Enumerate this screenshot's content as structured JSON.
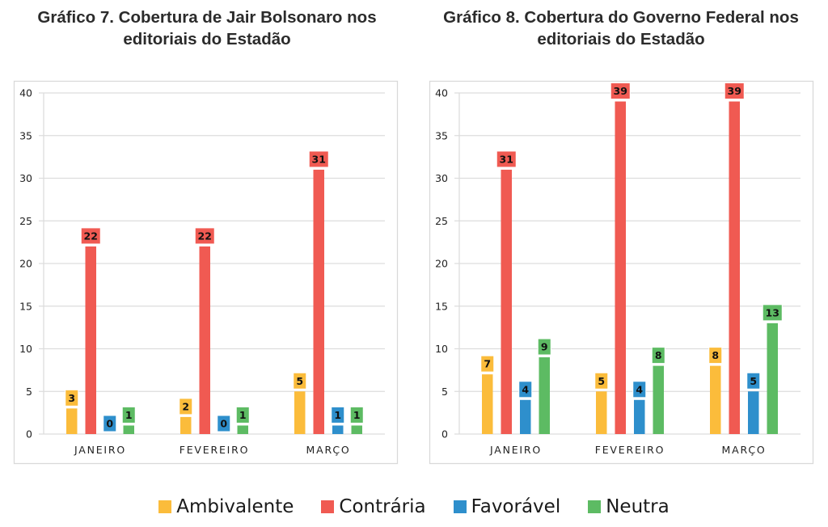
{
  "colors": {
    "Ambivalente": "#FBBC3B",
    "Contrária": "#F05A52",
    "Favorável": "#2E8FCC",
    "Neutra": "#5DBB63",
    "grid": "#dddddd",
    "frame": "#d9d9d9"
  },
  "legend": [
    "Ambivalente",
    "Contrária",
    "Favorável",
    "Neutra"
  ],
  "chart_data": [
    {
      "type": "bar",
      "title_line1": "Gráfico 7. Cobertura de Jair Bolsonaro nos",
      "title_line2": "editoriais do Estadão",
      "categories": [
        "JANEIRO",
        "FEVEREIRO",
        "MARÇO"
      ],
      "series": [
        {
          "name": "Ambivalente",
          "values": [
            3,
            2,
            5
          ]
        },
        {
          "name": "Contrária",
          "values": [
            22,
            22,
            31
          ]
        },
        {
          "name": "Favorável",
          "values": [
            0,
            0,
            1
          ]
        },
        {
          "name": "Neutra",
          "values": [
            1,
            1,
            1
          ]
        }
      ],
      "ylim": [
        0,
        40
      ],
      "yticks": [
        "0",
        "5",
        "10",
        "15",
        "20",
        "25",
        "30",
        "35",
        "40"
      ],
      "grid": true,
      "legend_position": "bottom"
    },
    {
      "type": "bar",
      "title_line1": "Gráfico 8. Cobertura do Governo Federal nos",
      "title_line2": "editoriais do Estadão",
      "categories": [
        "JANEIRO",
        "FEVEREIRO",
        "MARÇO"
      ],
      "series": [
        {
          "name": "Ambivalente",
          "values": [
            7,
            5,
            8
          ]
        },
        {
          "name": "Contrária",
          "values": [
            31,
            39,
            39
          ]
        },
        {
          "name": "Favorável",
          "values": [
            4,
            4,
            5
          ]
        },
        {
          "name": "Neutra",
          "values": [
            9,
            8,
            13
          ]
        }
      ],
      "ylim": [
        0,
        40
      ],
      "yticks": [
        "0",
        "5",
        "10",
        "15",
        "20",
        "25",
        "30",
        "35",
        "40"
      ],
      "grid": true,
      "legend_position": "bottom"
    }
  ]
}
